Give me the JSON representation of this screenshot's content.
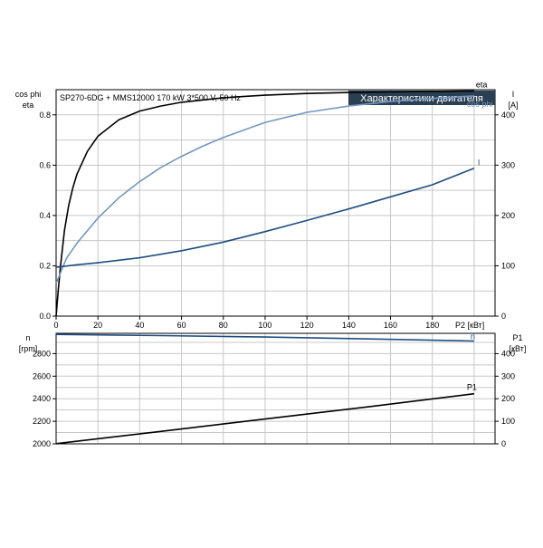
{
  "chart_data": [
    {
      "type": "line",
      "header": "SP270-6DG + MMS12000   170 kW   3*500 V, 50 Hz",
      "title_box": "Характеристики двигателя",
      "left_axis": {
        "label_lines": [
          "cos phi",
          "eta"
        ],
        "ylim": [
          0,
          0.9
        ],
        "ticks": [
          0.0,
          0.2,
          0.4,
          0.6,
          0.8
        ]
      },
      "right_axis": {
        "label_lines": [
          "I",
          "[A]"
        ],
        "ylim": [
          0,
          450
        ],
        "ticks": [
          0,
          100,
          200,
          300,
          400
        ]
      },
      "x_axis": {
        "label": "P2 [кВт]",
        "xlim": [
          0,
          210
        ],
        "ticks": [
          0,
          20,
          40,
          60,
          80,
          100,
          120,
          140,
          160,
          180
        ]
      },
      "grid": true,
      "series": [
        {
          "name": "eta",
          "axis": "left",
          "color": "#000000",
          "x": [
            0,
            1,
            2,
            4,
            6,
            8,
            10,
            15,
            20,
            30,
            40,
            50,
            60,
            80,
            100,
            120,
            140,
            160,
            180,
            200
          ],
          "y": [
            0,
            0.1,
            0.19,
            0.34,
            0.44,
            0.51,
            0.565,
            0.655,
            0.715,
            0.78,
            0.815,
            0.835,
            0.85,
            0.868,
            0.878,
            0.885,
            0.889,
            0.891,
            0.893,
            0.895
          ]
        },
        {
          "name": "cos phi",
          "axis": "left",
          "color": "#7397bd",
          "x": [
            0,
            5,
            10,
            20,
            30,
            40,
            50,
            60,
            70,
            80,
            100,
            120,
            140,
            160,
            180,
            200
          ],
          "y": [
            0.13,
            0.23,
            0.29,
            0.39,
            0.47,
            0.535,
            0.59,
            0.635,
            0.675,
            0.71,
            0.77,
            0.81,
            0.835,
            0.853,
            0.865,
            0.875
          ]
        },
        {
          "name": "I",
          "axis": "right",
          "color": "#1f4e80",
          "x": [
            0,
            10,
            20,
            40,
            60,
            80,
            100,
            120,
            140,
            160,
            180,
            200
          ],
          "y": [
            97,
            102,
            106,
            116,
            130,
            147,
            168,
            190,
            213,
            237,
            261,
            294
          ]
        }
      ]
    },
    {
      "type": "line",
      "left_axis": {
        "label_lines": [
          "n",
          "[rpm]"
        ],
        "ylim": [
          2000,
          2980
        ],
        "ticks": [
          2000,
          2200,
          2400,
          2600,
          2800
        ]
      },
      "right_axis": {
        "label_lines": [
          "P1",
          "[кВт]"
        ],
        "ylim": [
          0,
          490
        ],
        "ticks": [
          0,
          100,
          200,
          300,
          400
        ]
      },
      "x_axis": {
        "xlim": [
          0,
          210
        ]
      },
      "grid": true,
      "series": [
        {
          "name": "n",
          "axis": "left",
          "color": "#1f4e80",
          "x": [
            0,
            50,
            100,
            150,
            200
          ],
          "y": [
            2970,
            2960,
            2947,
            2930,
            2912
          ]
        },
        {
          "name": "P1",
          "axis": "right",
          "color": "#000000",
          "x": [
            0,
            50,
            100,
            150,
            200
          ],
          "y": [
            1,
            55,
            110,
            165,
            222
          ]
        }
      ]
    }
  ]
}
